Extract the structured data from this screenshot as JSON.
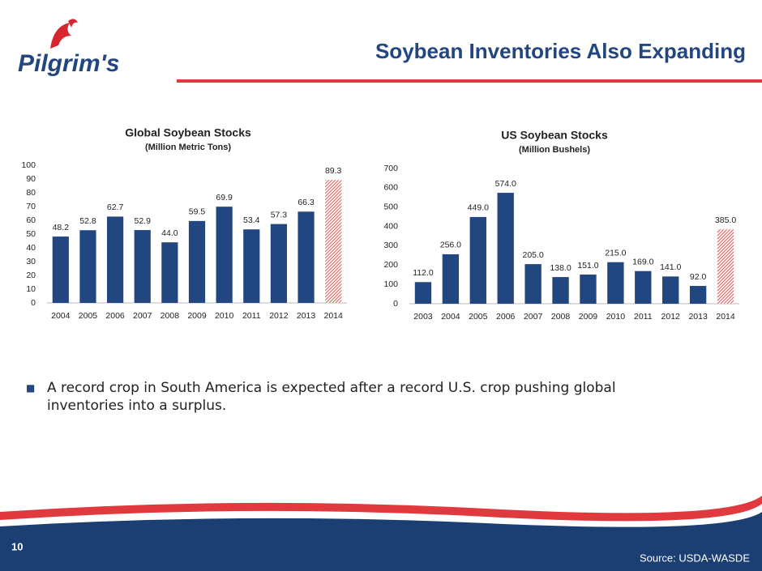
{
  "slide": {
    "logo": "Pilgrim's",
    "title": "Soybean Inventories Also Expanding",
    "bullet": "A record crop in South America is expected after a record U.S. crop pushing global inventories into a surplus.",
    "page_number": "10",
    "source": "Source:  USDA-WASDE"
  },
  "chart_data": [
    {
      "type": "bar",
      "title": "Global Soybean Stocks",
      "subtitle": "(Million Metric Tons)",
      "categories": [
        "2004",
        "2005",
        "2006",
        "2007",
        "2008",
        "2009",
        "2010",
        "2011",
        "2012",
        "2013",
        "2014"
      ],
      "values": [
        48.2,
        52.8,
        62.7,
        52.9,
        44.0,
        59.5,
        69.9,
        53.4,
        57.3,
        66.3,
        89.3
      ],
      "value_labels": [
        "48.2",
        "52.8",
        "62.7",
        "52.9",
        "44.0",
        "59.5",
        "69.9",
        "53.4",
        "57.3",
        "66.3",
        "89.3"
      ],
      "bar_styles": [
        "solid",
        "solid",
        "solid",
        "solid",
        "solid",
        "solid",
        "solid",
        "solid",
        "solid",
        "solid",
        "hatched"
      ],
      "color": "#22467f",
      "hatch_color": "#e05a5a",
      "ylim": [
        0,
        100
      ],
      "yticks": [
        0,
        10,
        20,
        30,
        40,
        50,
        60,
        70,
        80,
        90,
        100
      ],
      "grid": false
    },
    {
      "type": "bar",
      "title": "US Soybean Stocks",
      "subtitle": "(Million Bushels)",
      "categories": [
        "2003",
        "2004",
        "2005",
        "2006",
        "2007",
        "2008",
        "2009",
        "2010",
        "2011",
        "2012",
        "2013",
        "2014"
      ],
      "values": [
        112,
        256,
        449,
        574,
        205,
        138,
        151,
        215,
        169,
        141,
        92,
        385
      ],
      "value_labels": [
        "112.0",
        "256.0",
        "449.0",
        "574.0",
        "205.0",
        "138.0",
        "151.0",
        "215.0",
        "169.0",
        "141.0",
        "92.0",
        "385.0"
      ],
      "bar_styles": [
        "solid",
        "solid",
        "solid",
        "solid",
        "solid",
        "solid",
        "solid",
        "solid",
        "solid",
        "solid",
        "solid",
        "hatched"
      ],
      "color": "#22467f",
      "hatch_color": "#e05a5a",
      "ylim": [
        0,
        700
      ],
      "yticks": [
        0,
        100,
        200,
        300,
        400,
        500,
        600,
        700
      ],
      "grid": false
    }
  ]
}
